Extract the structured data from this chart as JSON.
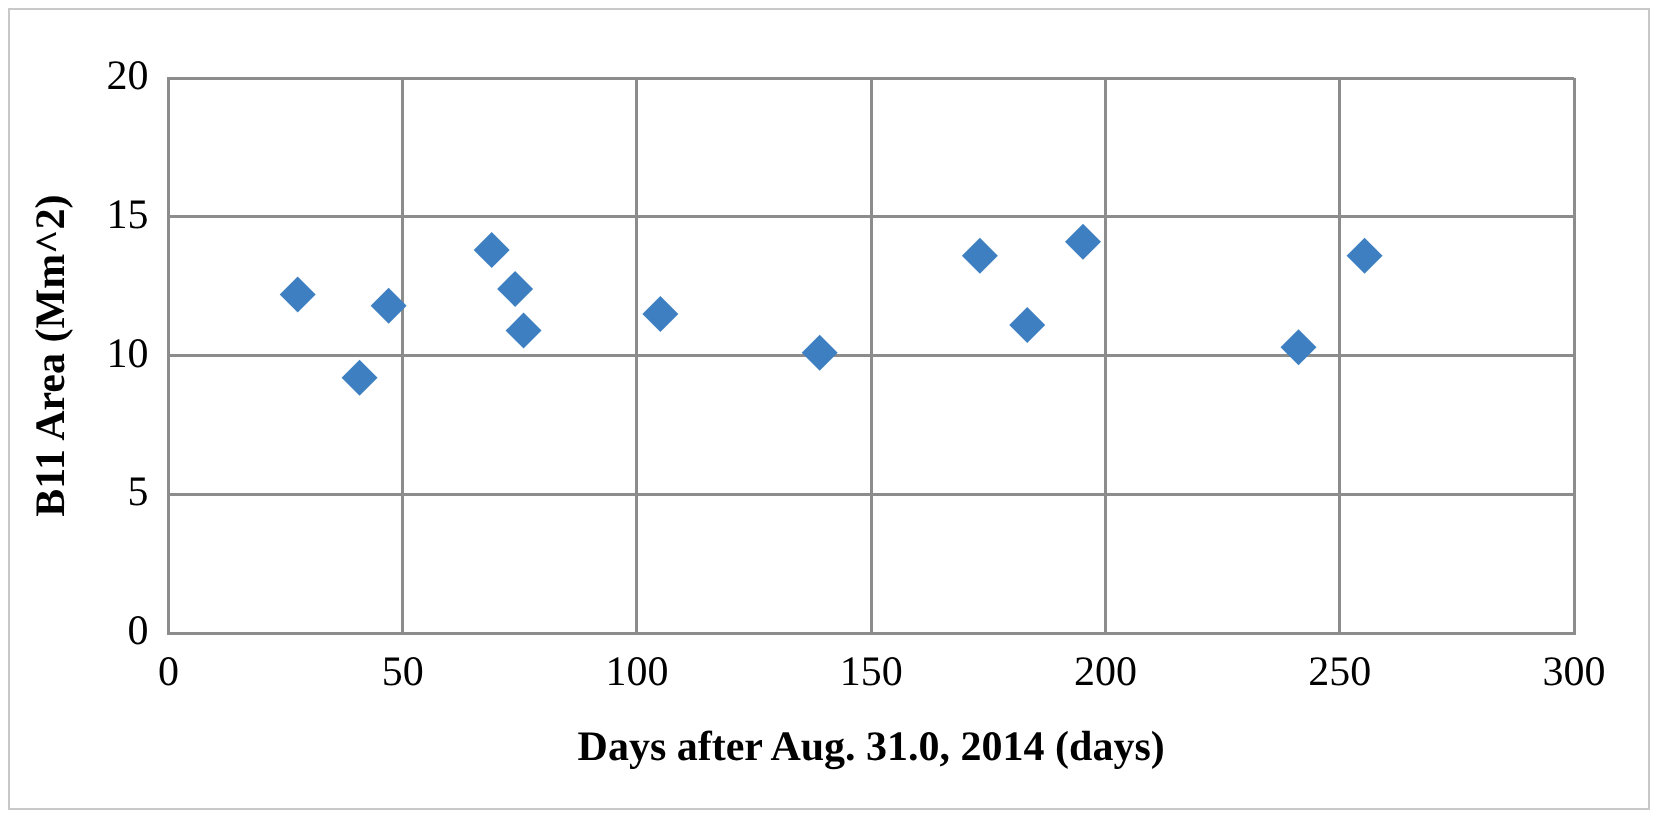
{
  "chart_data": {
    "type": "scatter",
    "xlabel": "Days after Aug. 31.0, 2014 (days)",
    "ylabel": "B11 Area (Mm^2)",
    "x": [
      27.6,
      40.8,
      47,
      69,
      74,
      75.8,
      105,
      139,
      173.2,
      183.3,
      195.2,
      241.2,
      255.3
    ],
    "series": [
      {
        "color": "#3d7fc1",
        "values": [
          12.2,
          9.2,
          11.8,
          13.8,
          12.4,
          10.9,
          11.5,
          10.1,
          13.6,
          11.1,
          14.1,
          10.3,
          13.6
        ]
      }
    ],
    "xlim": [
      0,
      300
    ],
    "xticks": [
      0,
      50,
      100,
      150,
      200,
      250,
      300
    ],
    "ylim": [
      0,
      20
    ],
    "yticks": [
      0,
      5,
      10,
      15,
      20
    ],
    "grid": true,
    "legend": false,
    "marker": "diamond"
  }
}
